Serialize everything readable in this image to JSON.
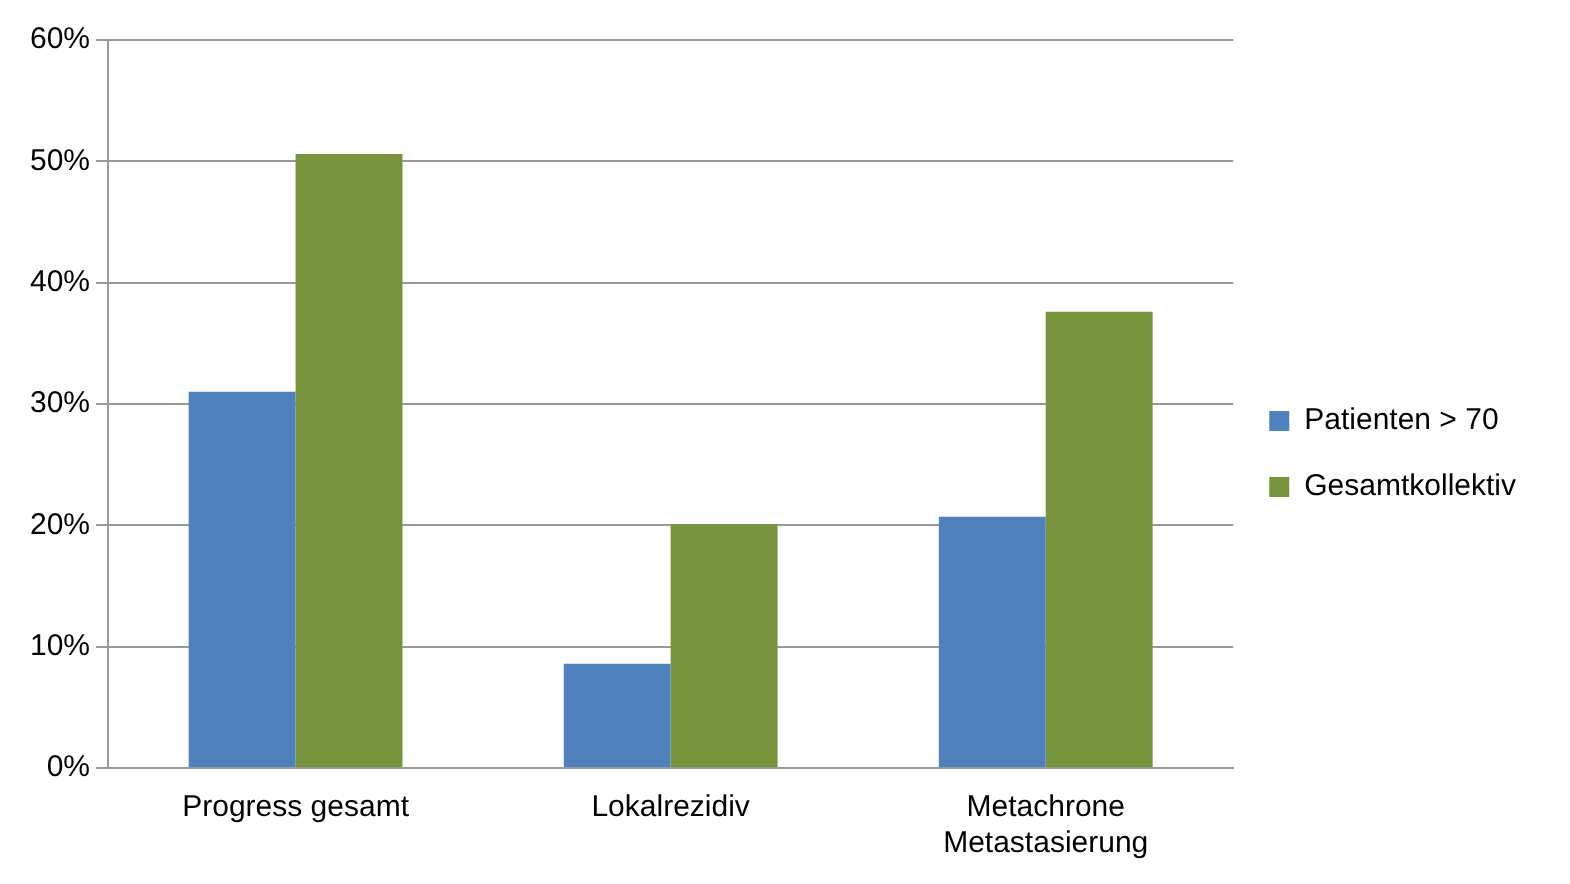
{
  "chart_data": {
    "type": "bar",
    "categories": [
      "Progress gesamt",
      "Lokalrezidiv",
      "Metachrone Metastasierung"
    ],
    "series": [
      {
        "name": "Patienten > 70",
        "color": "#4f81bd",
        "values": [
          31,
          8.6,
          20.7
        ]
      },
      {
        "name": "Gesamtkollektiv",
        "color": "#77933c",
        "values": [
          50.6,
          20.1,
          37.6
        ]
      }
    ],
    "ylim": [
      0,
      60
    ],
    "yticks": [
      {
        "value": 0,
        "label": "0%"
      },
      {
        "value": 10,
        "label": "10%"
      },
      {
        "value": 20,
        "label": "20%"
      },
      {
        "value": 30,
        "label": "30%"
      },
      {
        "value": 40,
        "label": "40%"
      },
      {
        "value": 50,
        "label": "50%"
      },
      {
        "value": 60,
        "label": "60%"
      }
    ],
    "grid": "y",
    "legend": "right"
  }
}
